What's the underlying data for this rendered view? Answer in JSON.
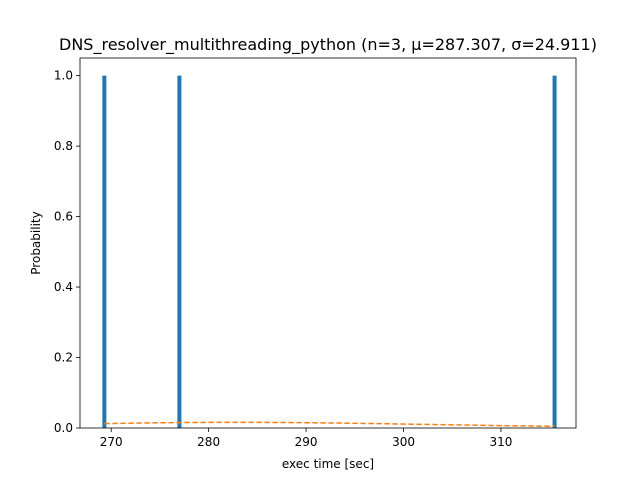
{
  "chart_data": {
    "type": "bar",
    "title": "DNS_resolver_multithreading_python (n=3, μ=287.307, σ=24.911)",
    "xlabel": "exec time [sec]",
    "ylabel": "Probability",
    "xlim": [
      266.8,
      317.7
    ],
    "ylim": [
      0,
      1.05
    ],
    "xticks": [
      270,
      280,
      290,
      300,
      310
    ],
    "yticks": [
      0.0,
      0.2,
      0.4,
      0.6,
      0.8,
      1.0
    ],
    "xtick_labels": [
      "270",
      "280",
      "290",
      "300",
      "310"
    ],
    "ytick_labels": [
      "0.0",
      "0.2",
      "0.4",
      "0.6",
      "0.8",
      "1.0"
    ],
    "grid": false,
    "series": [
      {
        "kind": "histogram",
        "x": [
          269.3,
          277.0,
          315.5
        ],
        "values": [
          1.0,
          1.0,
          1.0
        ],
        "color": "#1f77b4"
      },
      {
        "kind": "line",
        "style": "dashed",
        "x": [
          269.3,
          273,
          277,
          281,
          285,
          289,
          293,
          297,
          301,
          305,
          309,
          313,
          315.5
        ],
        "values": [
          0.0124,
          0.0142,
          0.0154,
          0.0161,
          0.016,
          0.0153,
          0.0141,
          0.0126,
          0.0108,
          0.009,
          0.0072,
          0.0057,
          0.0048
        ],
        "color": "#ff7f0e"
      }
    ]
  }
}
